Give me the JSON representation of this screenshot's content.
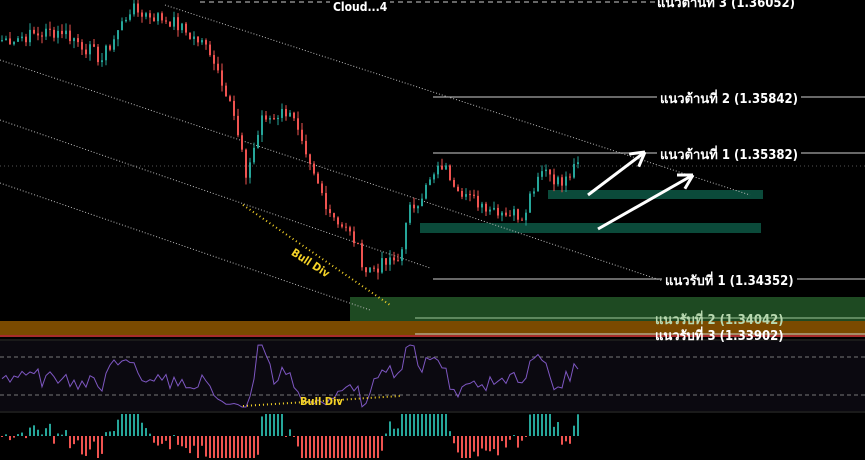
{
  "chart_data": {
    "type": "candlestick",
    "colors": {
      "up": "#26a69a",
      "down": "#ef5350",
      "rsi": "#7e57c2",
      "annotation": "#f5d327",
      "zone_teal": "#0b4a3a",
      "zone_green": "#1e4a22",
      "zone_orange": "#7a4a00",
      "level_line": "#d0d0d0"
    },
    "close_path": [
      [
        0,
        1.3631
      ],
      [
        15,
        1.3639
      ],
      [
        25,
        1.3615
      ],
      [
        32,
        1.3656
      ],
      [
        42,
        1.3647
      ],
      [
        52,
        1.3623
      ],
      [
        57,
        1.3582
      ],
      [
        61,
        1.352
      ],
      [
        65,
        1.3565
      ],
      [
        72,
        1.3574
      ],
      [
        76,
        1.3532
      ],
      [
        82,
        1.3491
      ],
      [
        88,
        1.3467
      ],
      [
        91,
        1.3442
      ],
      [
        99,
        1.345
      ],
      [
        102,
        1.3491
      ],
      [
        110,
        1.3528
      ],
      [
        117,
        1.35
      ],
      [
        125,
        1.3491
      ],
      [
        130,
        1.3487
      ],
      [
        135,
        1.3528
      ],
      [
        140,
        1.3512
      ],
      [
        144,
        1.3528
      ]
    ],
    "levels": [
      {
        "label": "แนวต้านที่ 3 (1.36052)",
        "price": 1.36052
      },
      {
        "label": "แนวต้านที่ 2 (1.35842)",
        "price": 1.35842
      },
      {
        "label": "แนวต้านที่ 1 (1.35382)",
        "price": 1.35382
      },
      {
        "label": "แนวรับที่ 1 (1.34352)",
        "price": 1.34352
      },
      {
        "label": "แนวรับที่ 2 (1.34042)",
        "price": 1.34042
      },
      {
        "label": "แนวรับที่ 3 (1.33902)",
        "price": 1.33902
      }
    ],
    "annotations": {
      "price_divergence": "Bull Div",
      "rsi_divergence": "Bull Div",
      "top_label": "Cloud...4"
    },
    "indicators": [
      "RSI",
      "MACD histogram"
    ]
  }
}
